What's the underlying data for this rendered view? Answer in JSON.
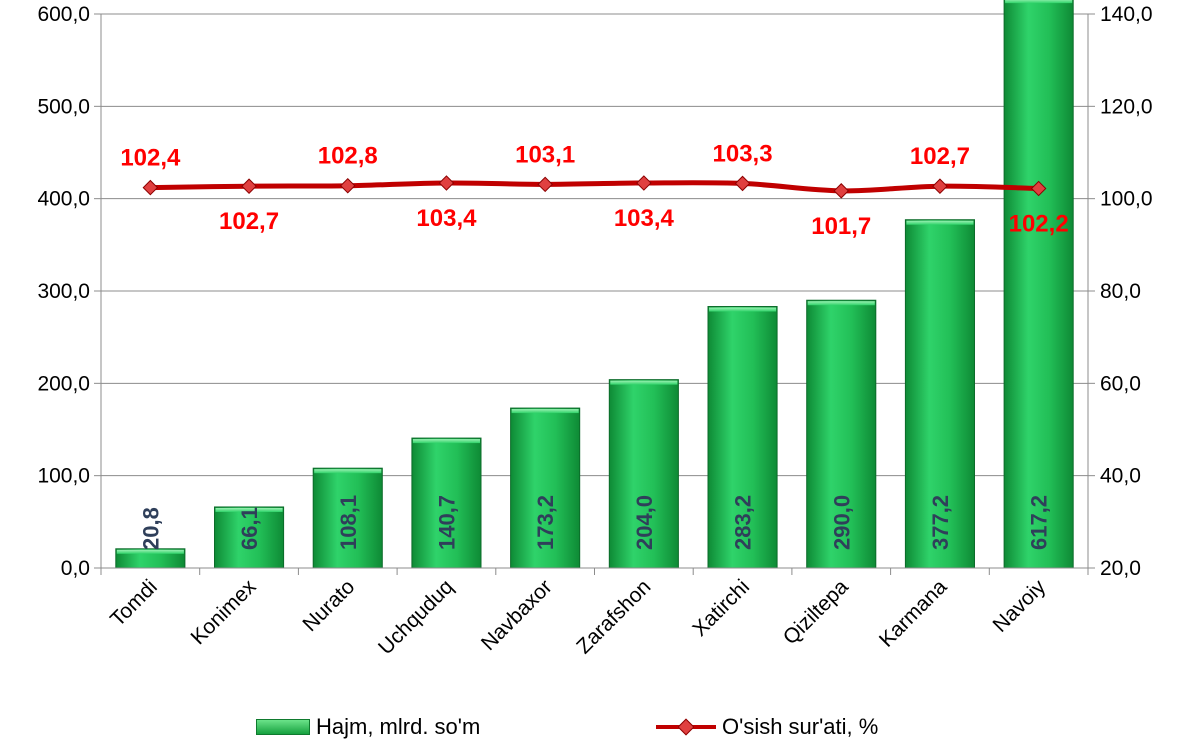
{
  "chart_data": {
    "type": "bar+line",
    "categories": [
      "Tomdi",
      "Konimex",
      "Nurato",
      "Uchquduq",
      "Navbaxor",
      "Zarafshon",
      "Xatirchi",
      "Qiziltepa",
      "Karmana",
      "Navoiy"
    ],
    "series": [
      {
        "name": "Hajm, mlrd. so'm",
        "type": "bar",
        "axis": "left",
        "values": [
          20.8,
          66.1,
          108.1,
          140.7,
          173.2,
          204.0,
          283.2,
          290.0,
          377.2,
          617.2
        ],
        "labels": [
          "20,8",
          "66,1",
          "108,1",
          "140,7",
          "173,2",
          "204,0",
          "283,2",
          "290,0",
          "377,2",
          "617,2"
        ],
        "color": "#1fae4b"
      },
      {
        "name": "O'sish sur'ati, %",
        "type": "line",
        "axis": "right",
        "values": [
          102.4,
          102.7,
          102.8,
          103.4,
          103.1,
          103.4,
          103.3,
          101.7,
          102.7,
          102.2
        ],
        "labels": [
          "102,4",
          "102,7",
          "102,8",
          "103,4",
          "103,1",
          "103,4",
          "103,3",
          "101,7",
          "102,7",
          "102,2"
        ],
        "label_positions": [
          "above",
          "below",
          "above",
          "below",
          "above",
          "below",
          "above",
          "below",
          "above",
          "below"
        ],
        "color": "#c00000"
      }
    ],
    "y_left": {
      "ylim": [
        0,
        600
      ],
      "ticks": [
        "0,0",
        "100,0",
        "200,0",
        "300,0",
        "400,0",
        "500,0",
        "600,0"
      ],
      "tick_values": [
        0,
        100,
        200,
        300,
        400,
        500,
        600
      ]
    },
    "y_right": {
      "ylim": [
        20,
        140
      ],
      "ticks": [
        "20,0",
        "40,0",
        "60,0",
        "80,0",
        "100,0",
        "120,0",
        "140,0"
      ],
      "tick_values": [
        20,
        40,
        60,
        80,
        100,
        120,
        140
      ]
    },
    "grid": true,
    "legend": "bottom",
    "label_color_bars": "#2f3f5a",
    "label_color_line": "#ff0000"
  },
  "legend": {
    "bar_label": "Hajm, mlrd. so'm",
    "line_label": "O'sish sur'ati, %"
  }
}
